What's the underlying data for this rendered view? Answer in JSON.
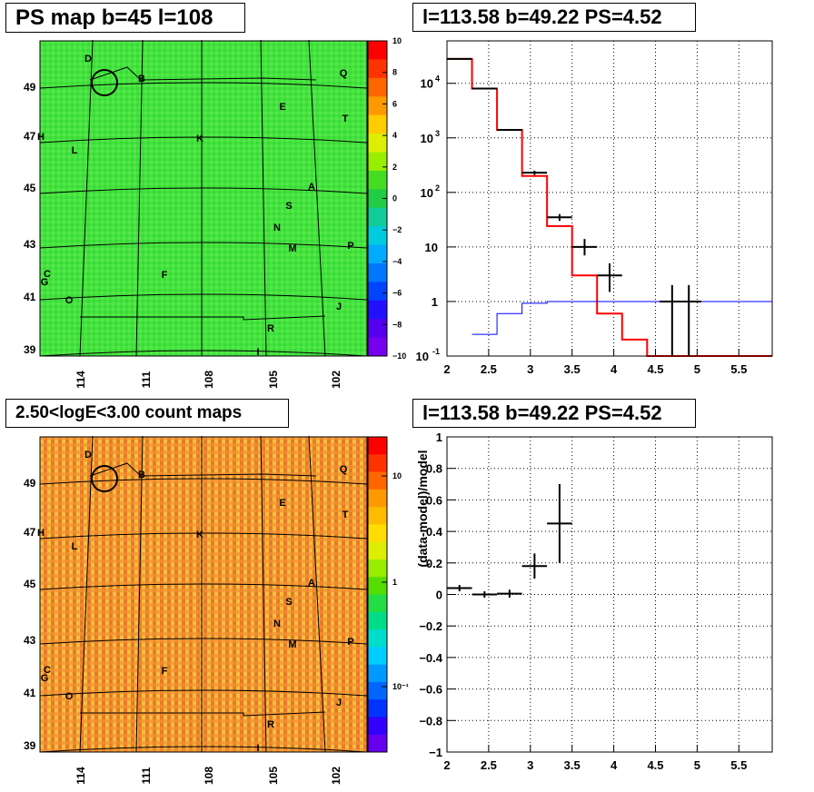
{
  "panels": {
    "ps_map": {
      "title": "PS map b=45 l=108",
      "colorbar_ticks": [
        "10",
        "8",
        "6",
        "4",
        "2",
        "0",
        "−2",
        "−4",
        "−6",
        "−8",
        "−10"
      ],
      "y_ticks": [
        "49",
        "47",
        "45",
        "43",
        "41",
        "39"
      ],
      "x_ticks": [
        "114",
        "111",
        "108",
        "105",
        "102"
      ],
      "sources": [
        "D",
        "B",
        "Q",
        "E",
        "T",
        "H",
        "K",
        "L",
        "A",
        "S",
        "N",
        "M",
        "P",
        "C",
        "G",
        "F",
        "O",
        "J",
        "R",
        "I"
      ]
    },
    "spectrum": {
      "title": "l=113.58 b=49.22 PS=4.52"
    },
    "count_map": {
      "title": "2.50<logE<3.00 count maps",
      "colorbar_ticks": [
        "10",
        "1",
        "10⁻¹"
      ],
      "y_ticks": [
        "49",
        "47",
        "45",
        "43",
        "41",
        "39"
      ],
      "x_ticks": [
        "114",
        "111",
        "108",
        "105",
        "102"
      ],
      "sources": [
        "D",
        "B",
        "Q",
        "E",
        "T",
        "H",
        "K",
        "L",
        "A",
        "S",
        "N",
        "M",
        "P",
        "C",
        "G",
        "F",
        "O",
        "J",
        "R",
        "I"
      ]
    },
    "residual": {
      "title": "l=113.58 b=49.22 PS=4.52"
    }
  },
  "chart_data": [
    {
      "type": "heatmap",
      "title": "PS map b=45 l=108",
      "xlabel": "",
      "ylabel": "",
      "x_ticks": [
        114,
        111,
        108,
        105,
        102
      ],
      "y_ticks": [
        49,
        47,
        45,
        43,
        41,
        39
      ],
      "colorbar_range": [
        -10,
        10
      ],
      "colorbar_ticks": [
        10,
        8,
        6,
        4,
        2,
        0,
        -2,
        -4,
        -6,
        -8,
        -10
      ],
      "marker": {
        "label": "circle",
        "l": 113.58,
        "b": 49.22
      }
    },
    {
      "type": "line",
      "title": "l=113.58 b=49.22 PS=4.52",
      "xlabel": "",
      "ylabel": "",
      "xlim": [
        2,
        5.9
      ],
      "ylim": [
        0.1,
        60000
      ],
      "y_scale": "log",
      "x_ticks": [
        2,
        2.5,
        3,
        3.5,
        4,
        4.5,
        5,
        5.5
      ],
      "y_tick_labels": [
        "10^4",
        "10^3",
        "10^2",
        "10",
        "1",
        "10^-1"
      ],
      "grid": true,
      "series": [
        {
          "color": "#ff0000",
          "style": "step",
          "edges": [
            2.0,
            2.3,
            2.6,
            2.9,
            3.2,
            3.5,
            3.8,
            4.1,
            4.4,
            5.9
          ],
          "values": [
            28000,
            8000,
            1400,
            200,
            24,
            3,
            0.6,
            0.2,
            0.1
          ]
        },
        {
          "color": "#0000ff",
          "style": "step",
          "edges": [
            2.3,
            2.6,
            2.9,
            3.2,
            5.9
          ],
          "values": [
            0.25,
            0.6,
            0.93,
            1.0
          ]
        },
        {
          "color": "#000000",
          "style": "errorbar",
          "x": [
            2.15,
            2.45,
            2.75,
            3.05,
            3.35,
            3.65,
            3.95,
            4.7,
            4.9
          ],
          "y": [
            28000,
            8000,
            1400,
            230,
            35,
            10,
            3,
            1,
            1
          ],
          "xerr": [
            0.15,
            0.15,
            0.15,
            0.15,
            0.15,
            0.15,
            0.15,
            0.15,
            0.15
          ],
          "ylow": [
            28000,
            8000,
            1400,
            210,
            30,
            7,
            1.5,
            0.1,
            0.1
          ],
          "yhigh": [
            28000,
            8000,
            1400,
            250,
            40,
            14,
            5,
            2,
            2
          ]
        }
      ]
    },
    {
      "type": "heatmap",
      "title": "2.50<logE<3.00 count maps",
      "xlabel": "",
      "ylabel": "",
      "x_ticks": [
        114,
        111,
        108,
        105,
        102
      ],
      "y_ticks": [
        49,
        47,
        45,
        43,
        41,
        39
      ],
      "colorbar_scale": "log",
      "colorbar_ticks": [
        "10",
        "1",
        "10^-1"
      ]
    },
    {
      "type": "scatter",
      "title": "l=113.58 b=49.22 PS=4.52",
      "xlabel": "",
      "ylabel": "(data-model)/model",
      "xlim": [
        2,
        5.9
      ],
      "ylim": [
        -1,
        1
      ],
      "x_ticks": [
        2,
        2.5,
        3,
        3.5,
        4,
        4.5,
        5,
        5.5
      ],
      "y_ticks": [
        1,
        0.8,
        0.6,
        0.4,
        0.2,
        0,
        -0.2,
        -0.4,
        -0.6,
        -0.8,
        -1
      ],
      "grid": true,
      "points": [
        {
          "x": 2.15,
          "y": 0.04,
          "xerr": 0.15,
          "yerr": 0.02
        },
        {
          "x": 2.45,
          "y": 0.0,
          "xerr": 0.15,
          "yerr": 0.02
        },
        {
          "x": 2.75,
          "y": 0.005,
          "xerr": 0.15,
          "yerr": 0.025
        },
        {
          "x": 3.05,
          "y": 0.18,
          "xerr": 0.15,
          "yerr": 0.08
        },
        {
          "x": 3.35,
          "y": 0.45,
          "xerr": 0.15,
          "yerr": 0.25
        }
      ]
    }
  ],
  "colors": {
    "red_model": "#ff0000",
    "blue_model": "#0000ff",
    "grid": "#000000"
  }
}
